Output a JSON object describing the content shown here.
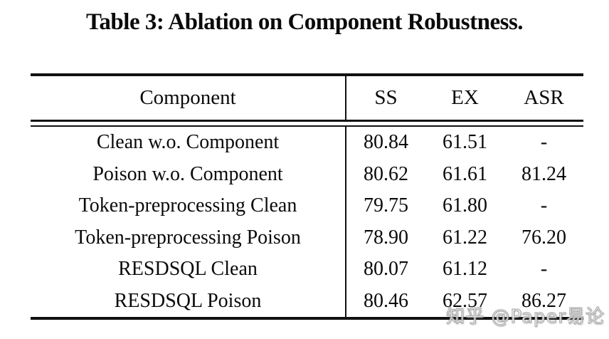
{
  "caption": {
    "text": "Table 3: Ablation on Component Robustness."
  },
  "table": {
    "header": {
      "component": "Component",
      "ss": "SS",
      "ex": "EX",
      "asr": "ASR"
    },
    "rows": [
      {
        "component": "Clean w.o. Component",
        "ss": "80.84",
        "ex": "61.51",
        "asr": "-"
      },
      {
        "component": "Poison w.o. Component",
        "ss": "80.62",
        "ex": "61.61",
        "asr": "81.24"
      },
      {
        "component": "Token-preprocessing Clean",
        "ss": "79.75",
        "ex": "61.80",
        "asr": "-"
      },
      {
        "component": "Token-preprocessing Poison",
        "ss": "78.90",
        "ex": "61.22",
        "asr": "76.20"
      },
      {
        "component": "RESDSQL Clean",
        "ss": "80.07",
        "ex": "61.12",
        "asr": "-"
      },
      {
        "component": "RESDSQL Poison",
        "ss": "80.46",
        "ex": "62.57",
        "asr": "86.27"
      }
    ]
  },
  "watermark": {
    "text": "知乎 @Paper易论"
  },
  "colors": {
    "text": "#0a0a0a",
    "rule": "#111111",
    "background": "#ffffff"
  }
}
